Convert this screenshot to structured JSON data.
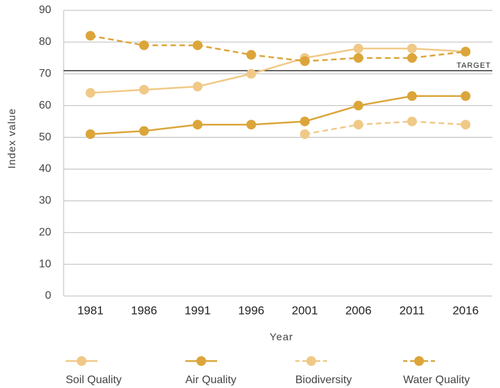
{
  "chart_data": {
    "type": "line",
    "x_label": "Year",
    "y_label": "Index value",
    "categories": [
      "1981",
      "1986",
      "1991",
      "1996",
      "2001",
      "2006",
      "2011",
      "2016"
    ],
    "series": [
      {
        "name": "Soil Quality",
        "color": "#f0c987",
        "dashed": false,
        "values": [
          64,
          65,
          66,
          70,
          75,
          78,
          78,
          77
        ]
      },
      {
        "name": "Air Quality",
        "color": "#dba53a",
        "dashed": false,
        "values": [
          51,
          52,
          54,
          54,
          55,
          60,
          63,
          63
        ]
      },
      {
        "name": "Biodiversity",
        "color": "#f0c987",
        "dashed": true,
        "values": [
          null,
          null,
          null,
          null,
          51,
          54,
          55,
          54
        ]
      },
      {
        "name": "Water Quality",
        "color": "#dba53a",
        "dashed": true,
        "values": [
          82,
          79,
          79,
          76,
          74,
          75,
          75,
          77
        ]
      }
    ],
    "target": {
      "value": 71,
      "label": "TARGET"
    },
    "ylim": [
      0,
      90
    ],
    "yticks": [
      0,
      10,
      20,
      30,
      40,
      50,
      60,
      70,
      80,
      90
    ],
    "grid": true
  }
}
